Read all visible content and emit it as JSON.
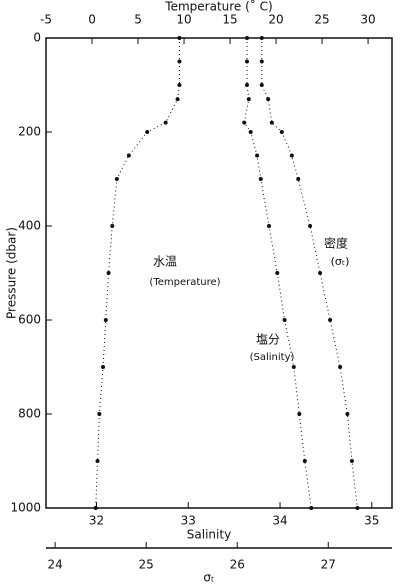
{
  "chart_data": {
    "type": "profile",
    "ylabel": "Pressure (dbar)",
    "ylim": [
      0,
      1000
    ],
    "y_inverted": true,
    "yticks": [
      0,
      200,
      400,
      600,
      800,
      1000
    ],
    "pressure": [
      0,
      50,
      100,
      130,
      180,
      200,
      250,
      300,
      400,
      500,
      600,
      700,
      800,
      900,
      1000
    ],
    "axes": [
      {
        "label": "Temperature (˚ C)",
        "lim": [
          -5,
          32.6
        ],
        "ticks": [
          -5,
          0,
          5,
          10,
          15,
          20,
          25,
          30
        ],
        "position": "top"
      },
      {
        "label": "Salinity",
        "lim": [
          31.45,
          35.22
        ],
        "ticks": [
          32,
          33,
          34,
          35
        ],
        "position": "bottom"
      },
      {
        "label": "σₜ",
        "lim": [
          23.9,
          27.7
        ],
        "ticks": [
          24,
          25,
          26,
          27
        ],
        "position": "bottom-outer"
      }
    ],
    "series": [
      {
        "axis": 0,
        "color": "#111111",
        "values": [
          9.5,
          9.5,
          9.5,
          9.3,
          8.0,
          6.0,
          4.0,
          2.7,
          2.2,
          1.8,
          1.5,
          1.2,
          0.8,
          0.6,
          0.4
        ]
      },
      {
        "axis": 1,
        "color": "#111111",
        "values": [
          33.64,
          33.64,
          33.64,
          33.66,
          33.61,
          33.68,
          33.75,
          33.79,
          33.88,
          33.97,
          34.05,
          34.15,
          34.21,
          34.27,
          34.34
        ]
      },
      {
        "axis": 2,
        "color": "#111111",
        "values": [
          26.27,
          26.27,
          26.27,
          26.34,
          26.38,
          26.49,
          26.6,
          26.67,
          26.8,
          26.91,
          27.02,
          27.13,
          27.21,
          27.26,
          27.32
        ]
      }
    ],
    "annotations": [
      "水温",
      "(Temperature)",
      "密度",
      "(σₜ)",
      "塩分",
      "(Salinity)"
    ]
  }
}
